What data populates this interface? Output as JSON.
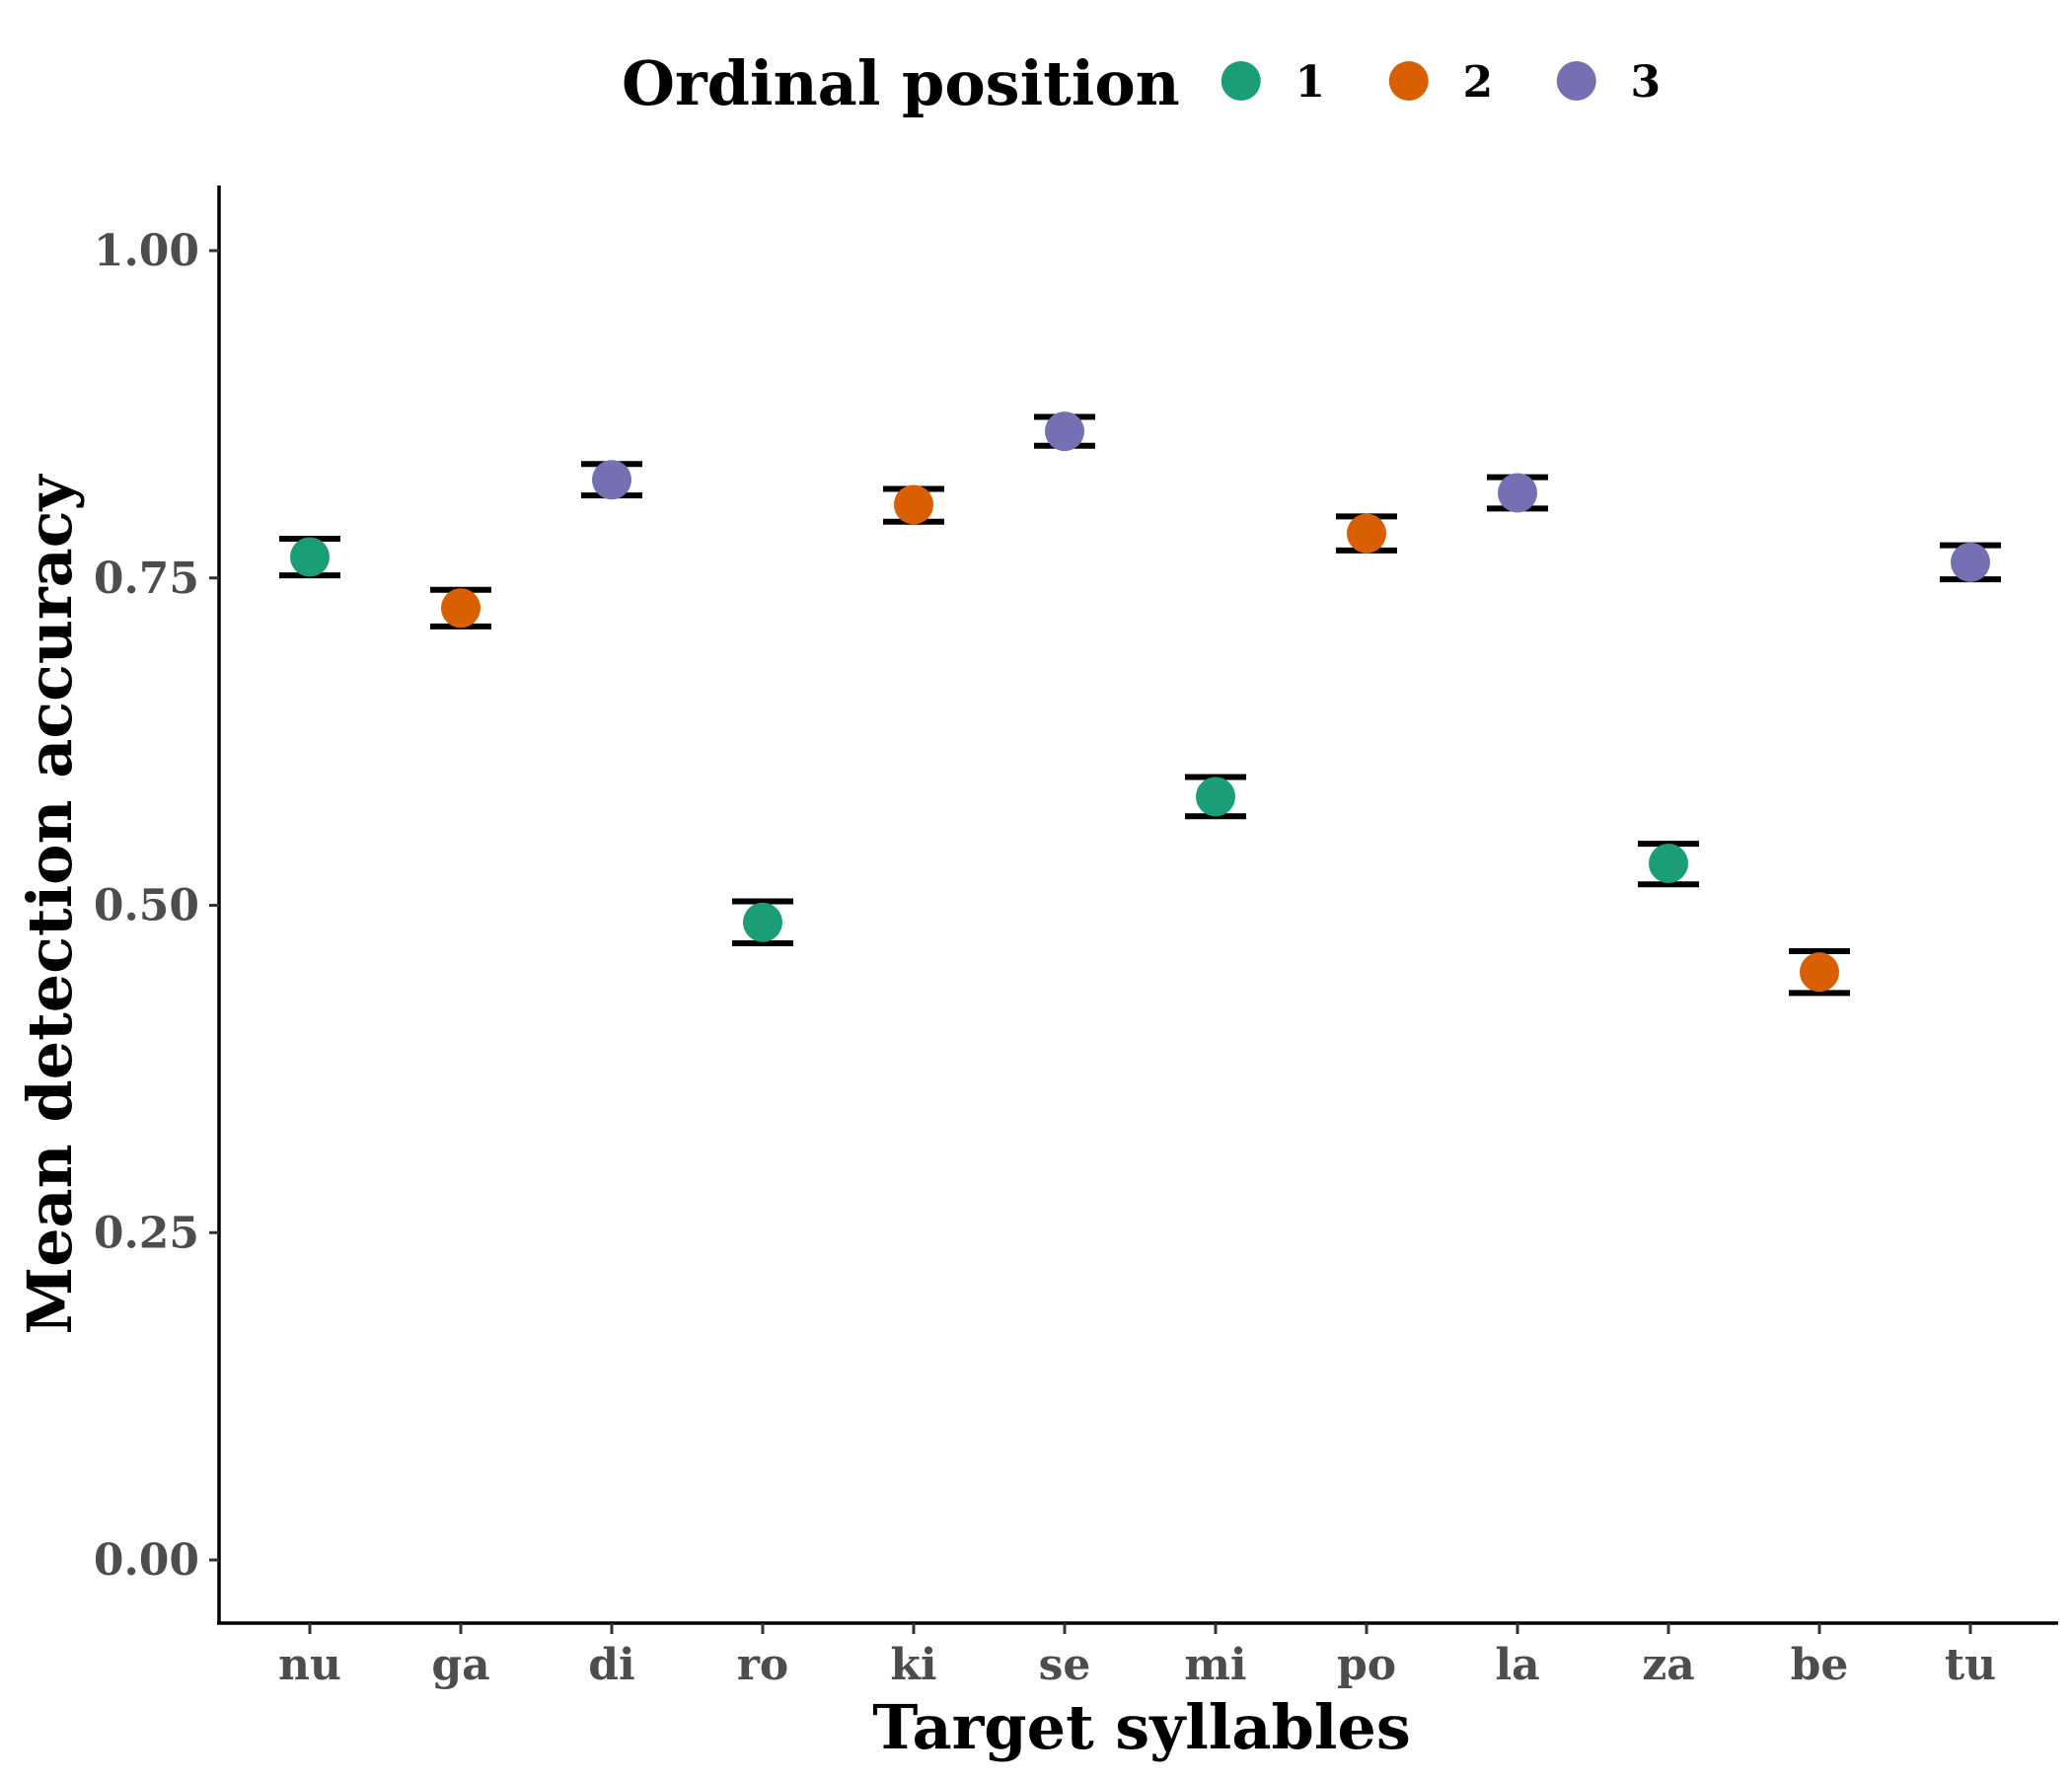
{
  "chart_data": {
    "type": "scatter",
    "title": "",
    "xlabel": "Target syllables",
    "ylabel": "Mean detection accuracy",
    "ylim": [
      -0.05,
      1.05
    ],
    "yticks": [
      0.0,
      0.25,
      0.5,
      0.75,
      1.0
    ],
    "ytick_labels": [
      "0.00",
      "0.25",
      "0.50",
      "0.75",
      "1.00"
    ],
    "categories": [
      "nu",
      "ga",
      "di",
      "ro",
      "ki",
      "se",
      "mi",
      "po",
      "la",
      "za",
      "be",
      "tu"
    ],
    "grid": false,
    "legend": {
      "title": "Ordinal position",
      "placement": "top",
      "entries": [
        {
          "label": "1",
          "color": "#1b9e77"
        },
        {
          "label": "2",
          "color": "#d95f02"
        },
        {
          "label": "3",
          "color": "#7570b3"
        }
      ]
    },
    "points": [
      {
        "x": "nu",
        "y": 0.766,
        "ymin": 0.752,
        "ymax": 0.78,
        "group": "1"
      },
      {
        "x": "ga",
        "y": 0.727,
        "ymin": 0.713,
        "ymax": 0.741,
        "group": "2"
      },
      {
        "x": "di",
        "y": 0.825,
        "ymin": 0.813,
        "ymax": 0.837,
        "group": "3"
      },
      {
        "x": "ro",
        "y": 0.487,
        "ymin": 0.471,
        "ymax": 0.503,
        "group": "1"
      },
      {
        "x": "ki",
        "y": 0.806,
        "ymin": 0.793,
        "ymax": 0.818,
        "group": "2"
      },
      {
        "x": "se",
        "y": 0.862,
        "ymin": 0.851,
        "ymax": 0.873,
        "group": "3"
      },
      {
        "x": "mi",
        "y": 0.583,
        "ymin": 0.568,
        "ymax": 0.598,
        "group": "1"
      },
      {
        "x": "po",
        "y": 0.784,
        "ymin": 0.771,
        "ymax": 0.797,
        "group": "2"
      },
      {
        "x": "la",
        "y": 0.815,
        "ymin": 0.803,
        "ymax": 0.827,
        "group": "3"
      },
      {
        "x": "za",
        "y": 0.532,
        "ymin": 0.516,
        "ymax": 0.547,
        "group": "1"
      },
      {
        "x": "be",
        "y": 0.449,
        "ymin": 0.433,
        "ymax": 0.465,
        "group": "2"
      },
      {
        "x": "tu",
        "y": 0.762,
        "ymin": 0.749,
        "ymax": 0.775,
        "group": "3"
      }
    ]
  }
}
